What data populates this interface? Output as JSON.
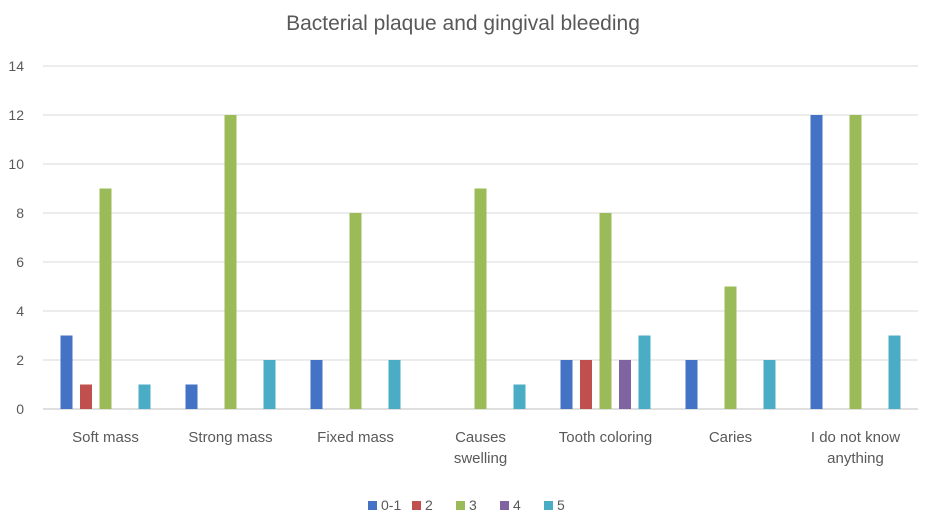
{
  "chart_data": {
    "type": "bar",
    "title": "Bacterial plaque and gingival bleeding",
    "xlabel": "",
    "ylabel": "",
    "ylim": [
      0,
      14
    ],
    "yticks": [
      0,
      2,
      4,
      6,
      8,
      10,
      12,
      14
    ],
    "grid": true,
    "legend_position": "bottom",
    "categories": [
      [
        "Soft mass"
      ],
      [
        "Strong mass"
      ],
      [
        "Fixed mass"
      ],
      [
        "Causes",
        "swelling"
      ],
      [
        "Tooth coloring"
      ],
      [
        "Caries"
      ],
      [
        "I do not know",
        "anything"
      ]
    ],
    "series": [
      {
        "name": "0-1",
        "color": "#4472C4",
        "values": [
          3,
          1,
          2,
          0,
          2,
          2,
          12
        ]
      },
      {
        "name": "2",
        "color": "#C0504D",
        "values": [
          1,
          0,
          0,
          0,
          2,
          0,
          0
        ]
      },
      {
        "name": "3",
        "color": "#9BBB59",
        "values": [
          9,
          12,
          8,
          9,
          8,
          5,
          12
        ]
      },
      {
        "name": "4",
        "color": "#8064A2",
        "values": [
          0,
          0,
          0,
          0,
          2,
          0,
          0
        ]
      },
      {
        "name": "5",
        "color": "#4BACC6",
        "values": [
          1,
          2,
          2,
          1,
          3,
          2,
          3
        ]
      }
    ]
  }
}
